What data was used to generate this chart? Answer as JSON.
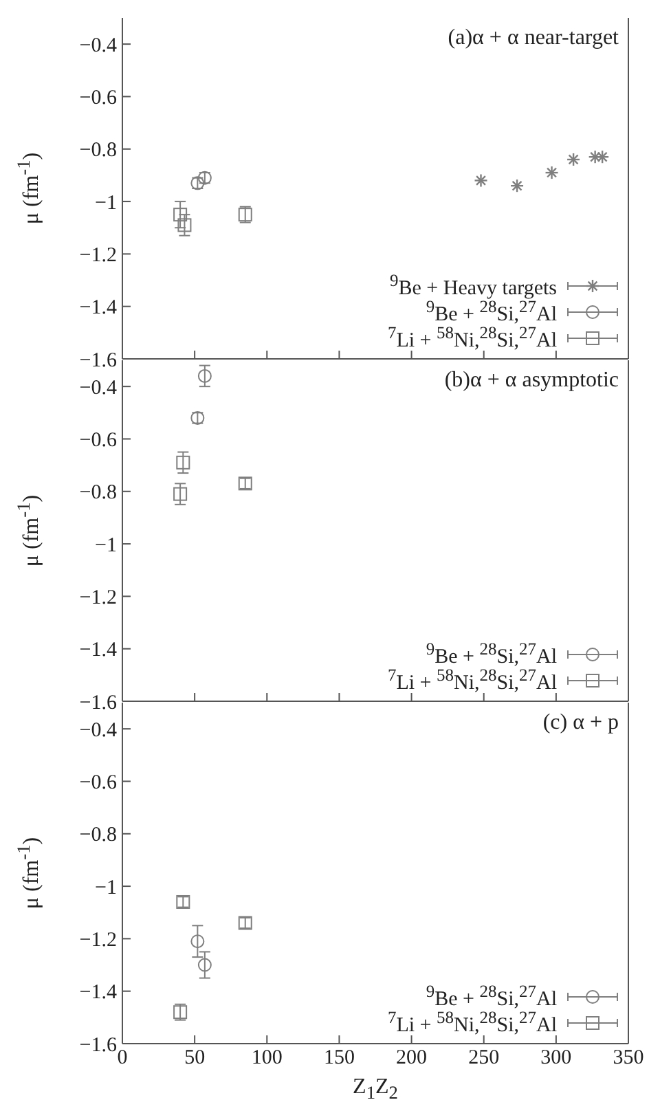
{
  "chart_data": [
    {
      "type": "scatter",
      "title": "(a)α + α near-target",
      "ylabel": "μ (fm$^{-1}$)",
      "xlim": [
        0,
        350
      ],
      "xticks": [
        0,
        50,
        100,
        150,
        200,
        250,
        300,
        350
      ],
      "ylim": [
        -1.6,
        -0.3
      ],
      "yticks": [
        {
          "value": -0.4,
          "label": "−0.4"
        },
        {
          "value": -0.6,
          "label": "−0.6"
        },
        {
          "value": -0.8,
          "label": "−0.8"
        },
        {
          "value": -1,
          "label": "−1"
        },
        {
          "value": -1.2,
          "label": "−1.2"
        },
        {
          "value": -1.4,
          "label": "−1.4"
        },
        {
          "value": -1.6,
          "label": "−1.6"
        }
      ],
      "tick_labels": "y",
      "legend": "bottom right",
      "series": [
        {
          "name": "$^{9}$Be + Heavy targets",
          "color": "#7f7f7f",
          "marker": "cross",
          "x": [
            248,
            273,
            297,
            312,
            327,
            332
          ],
          "values": [
            -0.92,
            -0.94,
            -0.89,
            -0.84,
            -0.83,
            -0.83
          ]
        },
        {
          "name": "$^{9}$Be + $^{28}$Si,$^{27}$Al",
          "color": "#7f7f7f",
          "marker": "circle",
          "x": [
            52,
            57
          ],
          "values": [
            -0.93,
            -0.91
          ],
          "errors": [
            0.02,
            0.02
          ]
        },
        {
          "name": "$^{7}$Li + $^{58}$Ni,$^{28}$Si,$^{27}$Al",
          "color": "#7f7f7f",
          "marker": "square",
          "x": [
            40,
            43,
            85
          ],
          "values": [
            -1.05,
            -1.09,
            -1.05
          ],
          "errors": [
            0.05,
            0.04,
            0.03
          ]
        }
      ]
    },
    {
      "type": "scatter",
      "title": "(b)α + α asymptotic",
      "ylabel": "μ (fm$^{-1}$)",
      "xlim": [
        0,
        350
      ],
      "xticks": [
        0,
        50,
        100,
        150,
        200,
        250,
        300,
        350
      ],
      "ylim": [
        -1.6,
        -0.3
      ],
      "yticks": [
        {
          "value": -0.4,
          "label": "−0.4"
        },
        {
          "value": -0.6,
          "label": "−0.6"
        },
        {
          "value": -0.8,
          "label": "−0.8"
        },
        {
          "value": -1,
          "label": "−1"
        },
        {
          "value": -1.2,
          "label": "−1.2"
        },
        {
          "value": -1.4,
          "label": "−1.4"
        },
        {
          "value": -1.6,
          "label": "−1.6"
        }
      ],
      "tick_labels": "y",
      "legend": "bottom right",
      "series": [
        {
          "name": "$^{9}$Be + $^{28}$Si,$^{27}$Al",
          "color": "#7f7f7f",
          "marker": "circle",
          "x": [
            57,
            52
          ],
          "values": [
            -0.36,
            -0.52
          ],
          "errors": [
            0.04,
            0.02
          ]
        },
        {
          "name": "$^{7}$Li + $^{58}$Ni,$^{28}$Si,$^{27}$Al",
          "color": "#7f7f7f",
          "marker": "square",
          "x": [
            42,
            40,
            85
          ],
          "values": [
            -0.69,
            -0.81,
            -0.77
          ],
          "errors": [
            0.04,
            0.04,
            0.02
          ]
        }
      ]
    },
    {
      "type": "scatter",
      "title": "(c) α + p",
      "xlabel": "Z$_{1}$Z$_{2}$",
      "ylabel": "μ (fm$^{-1}$)",
      "xlim": [
        0,
        350
      ],
      "xticks": [
        0,
        50,
        100,
        150,
        200,
        250,
        300,
        350
      ],
      "ylim": [
        -1.6,
        -0.3
      ],
      "yticks": [
        {
          "value": -0.4,
          "label": "−0.4"
        },
        {
          "value": -0.6,
          "label": "−0.6"
        },
        {
          "value": -0.8,
          "label": "−0.8"
        },
        {
          "value": -1,
          "label": "−1"
        },
        {
          "value": -1.2,
          "label": "−1.2"
        },
        {
          "value": -1.4,
          "label": "−1.4"
        },
        {
          "value": -1.6,
          "label": "−1.6"
        }
      ],
      "legend": "bottom right",
      "series": [
        {
          "name": "$^{9}$Be + $^{28}$Si,$^{27}$Al",
          "color": "#7f7f7f",
          "marker": "circle",
          "x": [
            52,
            57
          ],
          "values": [
            -1.21,
            -1.3
          ],
          "errors": [
            0.06,
            0.05
          ]
        },
        {
          "name": "$^{7}$Li + $^{58}$Ni,$^{28}$Si,$^{27}$Al",
          "color": "#7f7f7f",
          "marker": "square",
          "x": [
            42,
            40,
            85
          ],
          "values": [
            -1.06,
            -1.48,
            -1.14
          ],
          "errors": [
            0.02,
            0.03,
            0.02
          ]
        }
      ]
    }
  ]
}
